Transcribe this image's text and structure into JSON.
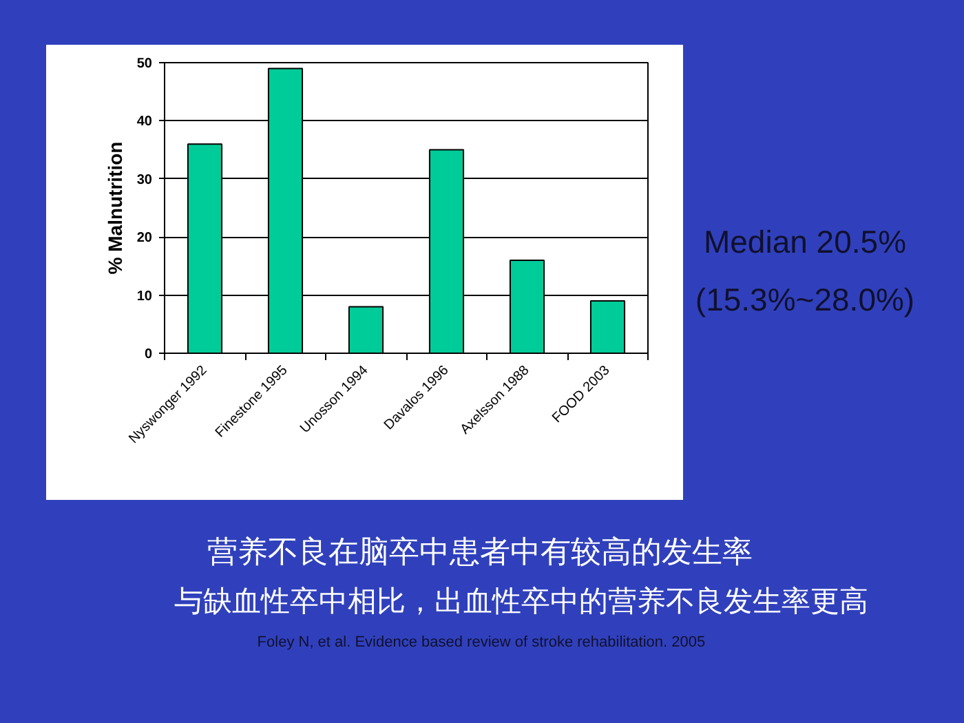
{
  "chart_data": {
    "type": "bar",
    "categories": [
      "Nyswonger 1992",
      "Finestone 1995",
      "Unosson 1994",
      "Davalos 1996",
      "Axelsson 1988",
      "FOOD 2003"
    ],
    "values": [
      36,
      49,
      8,
      35,
      16,
      9
    ],
    "color": "#00cc99",
    "ylabel": "% Malnutrition",
    "ylim": [
      0,
      50
    ],
    "yticks": [
      0,
      10,
      20,
      30,
      40,
      50
    ],
    "grid": "y",
    "annotations": [
      "Median 20.5%",
      "(15.3%~28.0%)",
      "营养不良在脑卒中患者中有较高的发生率",
      "与缺血性卒中相比，出血性卒中的营养不良发生率更高",
      "Foley N, et al.  Evidence based review of stroke rehabilitation.  2005"
    ]
  }
}
